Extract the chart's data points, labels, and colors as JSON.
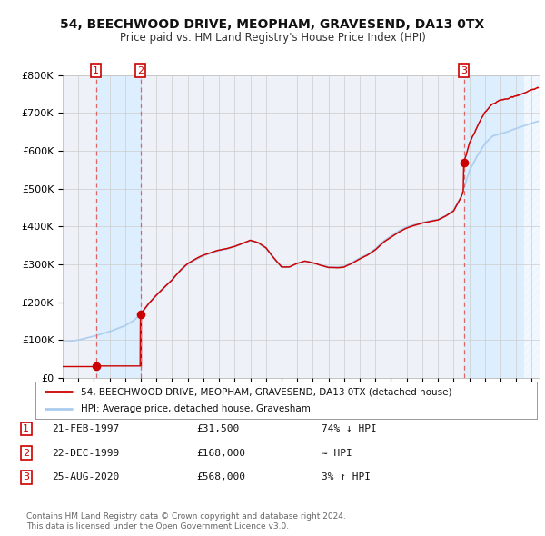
{
  "title": "54, BEECHWOOD DRIVE, MEOPHAM, GRAVESEND, DA13 0TX",
  "subtitle": "Price paid vs. HM Land Registry's House Price Index (HPI)",
  "ylim": [
    0,
    800000
  ],
  "xlim_start": 1995.0,
  "xlim_end": 2025.5,
  "yticks": [
    0,
    100000,
    200000,
    300000,
    400000,
    500000,
    600000,
    700000,
    800000
  ],
  "ytick_labels": [
    "£0",
    "£100K",
    "£200K",
    "£300K",
    "£400K",
    "£500K",
    "£600K",
    "£700K",
    "£800K"
  ],
  "grid_color": "#cccccc",
  "background_color": "#ffffff",
  "plot_bg_color": "#eef2f8",
  "red_line_color": "#cc0000",
  "blue_line_color": "#aaccee",
  "sale_marker_color": "#cc0000",
  "vline_color": "#dd6666",
  "shading_color": "#ddeeff",
  "transaction1_date": 1997.13,
  "transaction1_price": 31500,
  "transaction2_date": 1999.97,
  "transaction2_price": 168000,
  "transaction3_date": 2020.65,
  "transaction3_price": 568000,
  "hatch_start": 2024.5,
  "legend_label_red": "54, BEECHWOOD DRIVE, MEOPHAM, GRAVESEND, DA13 0TX (detached house)",
  "legend_label_blue": "HPI: Average price, detached house, Gravesham",
  "table_rows": [
    {
      "num": "1",
      "date": "21-FEB-1997",
      "price": "£31,500",
      "hpi": "74% ↓ HPI"
    },
    {
      "num": "2",
      "date": "22-DEC-1999",
      "price": "£168,000",
      "hpi": "≈ HPI"
    },
    {
      "num": "3",
      "date": "25-AUG-2020",
      "price": "£568,000",
      "hpi": "3% ↑ HPI"
    }
  ],
  "footnote1": "Contains HM Land Registry data © Crown copyright and database right 2024.",
  "footnote2": "This data is licensed under the Open Government Licence v3.0."
}
